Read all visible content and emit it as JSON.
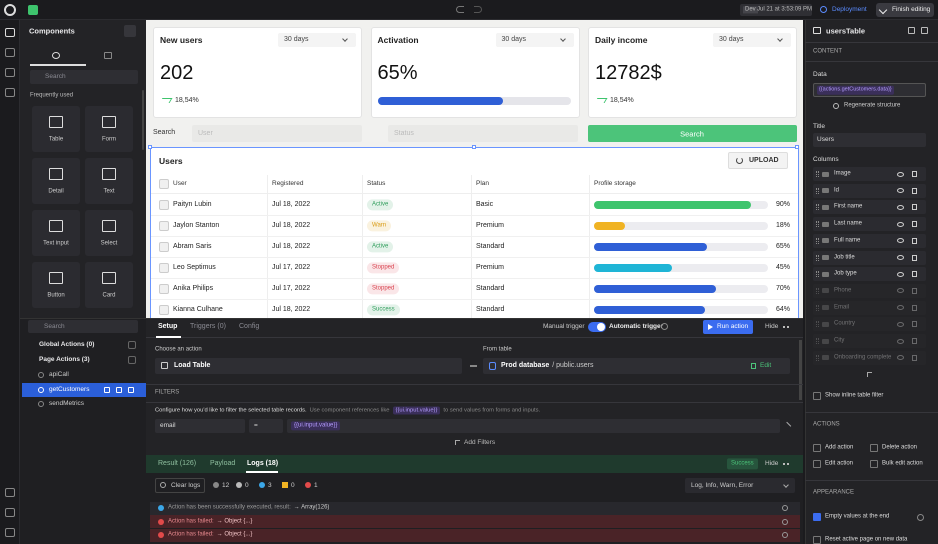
{
  "topbar": {
    "env": "Dev",
    "timestamp": "Jul 21 at 3:53:09 PM",
    "deployment": "Deployment",
    "finish": "Finish editing"
  },
  "components_panel": {
    "title": "Components",
    "search": "Search",
    "section": "Frequently used",
    "items": [
      "Table",
      "Form",
      "Detail",
      "Text",
      "Text input",
      "Select",
      "Button",
      "Card"
    ]
  },
  "actions_panel": {
    "search": "Search",
    "global": "Global Actions (0)",
    "page": "Page Actions (3)",
    "actions": [
      "apiCall",
      "getCustomers",
      "sendMetrics"
    ],
    "selected": 1
  },
  "kpis": [
    {
      "title": "New users",
      "range": "30 days",
      "value": 202,
      "change": "18,54%"
    },
    {
      "title": "Activation",
      "range": "30 days",
      "value": {
        "value": 65,
        "label": "65%"
      },
      "bar_color": "#2f5fd6"
    },
    {
      "title": "Daily income",
      "range": "30 days",
      "value": "12782$",
      "change": "18,54%"
    }
  ],
  "search_bar": {
    "label": "Search",
    "user": "User",
    "status": "Status",
    "button": "Search"
  },
  "table": {
    "title": "Users",
    "upload": "UPLOAD",
    "columns": [
      "User",
      "Registered",
      "Status",
      "Plan",
      "Profile storage"
    ],
    "rows": [
      {
        "user": "Paityn Lubin",
        "registered": "Jul 18, 2022",
        "status": "Active",
        "status_color": "#2e9d5b",
        "plan": "Basic",
        "storage": {
          "value": 90,
          "label": "90%"
        },
        "storage_color": "#3ec46d"
      },
      {
        "user": "Jaylon Stanton",
        "registered": "Jul 18, 2022",
        "status": "Warn",
        "status_color": "#d89a12",
        "plan": "Premium",
        "storage": {
          "value": 18,
          "label": "18%"
        },
        "storage_color": "#f0b323"
      },
      {
        "user": "Abram Saris",
        "registered": "Jul 18, 2022",
        "status": "Active",
        "status_color": "#2e9d5b",
        "plan": "Standard",
        "storage": {
          "value": 65,
          "label": "65%"
        },
        "storage_color": "#2f5fd6"
      },
      {
        "user": "Leo Septimus",
        "registered": "Jul 17, 2022",
        "status": "Stopped",
        "status_color": "#d9434f",
        "plan": "Premium",
        "storage": {
          "value": 45,
          "label": "45%"
        },
        "storage_color": "#1fb5d6"
      },
      {
        "user": "Anika Philips",
        "registered": "Jul 17, 2022",
        "status": "Stopped",
        "status_color": "#d9434f",
        "plan": "Standard",
        "storage": {
          "value": 70,
          "label": "70%"
        },
        "storage_color": "#2f5fd6"
      },
      {
        "user": "Kianna Culhane",
        "registered": "Jul 18, 2022",
        "status": "Success",
        "status_color": "#2e9d5b",
        "plan": "Standard",
        "storage": {
          "value": 64,
          "label": "64%"
        },
        "storage_color": "#2f5fd6"
      }
    ]
  },
  "setup": {
    "tabs": [
      "Setup",
      "Triggers (0)",
      "Config"
    ],
    "manual": "Manual trigger",
    "automatic": "Automatic trigger",
    "run": "Run action",
    "hide": "Hide",
    "choose_label": "Choose an action",
    "action": "Load Table",
    "from_label": "From table",
    "source_db": "Prod database",
    "source_table": "/ public.users",
    "edit": "Edit",
    "filters_title": "FILTERS",
    "filters_help_1": "Configure how you'd like to filter the selected table records.",
    "filters_help_2": "Use component references like",
    "filters_code": "{{ui.input.value}}",
    "filters_help_3": "to send values from forms and inputs.",
    "filter": {
      "field": "email",
      "op": "=",
      "value": "{{ui.input.value}}"
    },
    "add_filters": "Add Filters"
  },
  "results": {
    "tabs": [
      "Result (126)",
      "Payload",
      "Logs (18)"
    ],
    "status": "Success",
    "hide": "Hide",
    "clear": "Clear logs",
    "counts": [
      12,
      0,
      3,
      0,
      1
    ],
    "levels": "Log, Info, Warn, Error",
    "logs": [
      {
        "text": "Action has been successfully executed, result:",
        "obj": "→ Array(126)",
        "level": "info"
      },
      {
        "text": "Action has failed:",
        "obj": "→ Object {...}",
        "level": "error"
      },
      {
        "text": "Action has failed:",
        "obj": "→ Object {...}",
        "level": "error"
      }
    ]
  },
  "inspector": {
    "component": "usersTable",
    "content": "CONTENT",
    "data_label": "Data",
    "data_value": "{{actions.getCustomers.data}}",
    "regenerate": "Regenerate structure",
    "title_label": "Title",
    "title_value": "Users",
    "columns_label": "Columns",
    "columns": [
      {
        "name": "Image",
        "hidden": false
      },
      {
        "name": "Id",
        "hidden": false
      },
      {
        "name": "First name",
        "hidden": false
      },
      {
        "name": "Last name",
        "hidden": false
      },
      {
        "name": "Full name",
        "hidden": false
      },
      {
        "name": "Job title",
        "hidden": false
      },
      {
        "name": "Job type",
        "hidden": false
      },
      {
        "name": "Phone",
        "hidden": true
      },
      {
        "name": "Email",
        "hidden": true
      },
      {
        "name": "Country",
        "hidden": true
      },
      {
        "name": "City",
        "hidden": true
      },
      {
        "name": "Onboarding complete",
        "hidden": true
      }
    ],
    "inline_filter": "Show inline table filter",
    "actions_title": "ACTIONS",
    "actions": [
      "Add action",
      "Delete action",
      "Edit action",
      "Bulk edit action"
    ],
    "appearance": "APPEARANCE",
    "appearance_options": [
      {
        "label": "Empty values at the end",
        "checked": true
      },
      {
        "label": "Reset active page on new data",
        "checked": false
      }
    ]
  }
}
